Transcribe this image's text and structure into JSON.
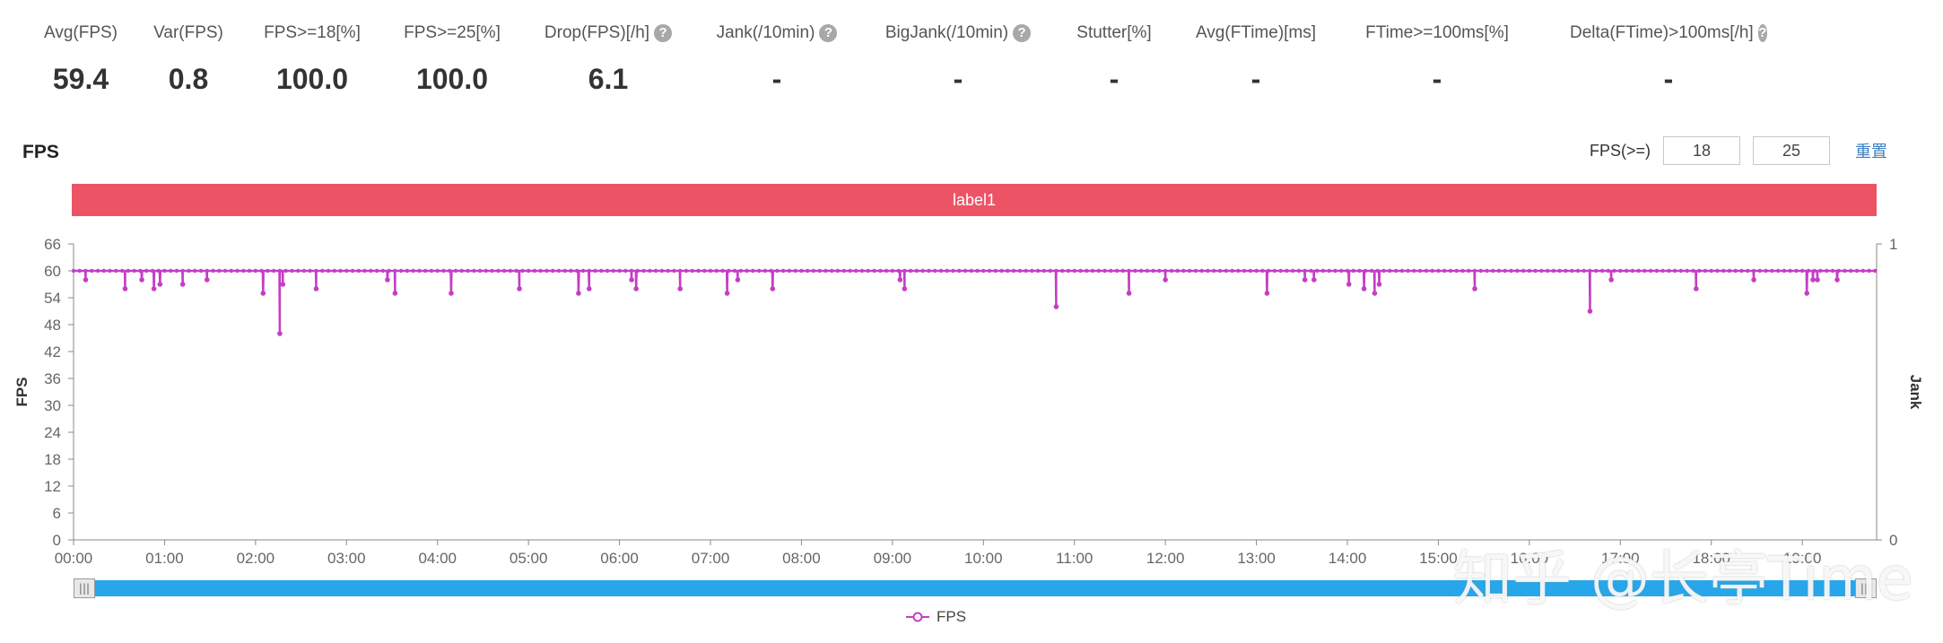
{
  "metrics": [
    {
      "label": "Avg(FPS)",
      "value": "59.4",
      "help": false
    },
    {
      "label": "Var(FPS)",
      "value": "0.8",
      "help": false
    },
    {
      "label": "FPS>=18[%]",
      "value": "100.0",
      "help": false
    },
    {
      "label": "FPS>=25[%]",
      "value": "100.0",
      "help": false
    },
    {
      "label": "Drop(FPS)[/h]",
      "value": "6.1",
      "help": true
    },
    {
      "label": "Jank(/10min)",
      "value": "-",
      "help": true
    },
    {
      "label": "BigJank(/10min)",
      "value": "-",
      "help": true
    },
    {
      "label": "Stutter[%]",
      "value": "-",
      "help": false
    },
    {
      "label": "Avg(FTime)[ms]",
      "value": "-",
      "help": false
    },
    {
      "label": "FTime>=100ms[%]",
      "value": "-",
      "help": false
    },
    {
      "label": "Delta(FTime)>100ms[/h]",
      "value": "-",
      "help": true
    }
  ],
  "help_icon": "question-circle-icon",
  "section_title": "FPS",
  "fps_controls": {
    "label": "FPS(>=)",
    "value1": "18",
    "value2": "25",
    "reset_label": "重置"
  },
  "label_bar": {
    "text": "label1",
    "color": "#ec5466"
  },
  "legend": {
    "label": "FPS",
    "icon": "line-marker-icon"
  },
  "watermark": "知乎 @长亭Time",
  "chart_data": {
    "type": "line",
    "color": "#c43ec4",
    "ylabel": "FPS",
    "y2label": "Jank",
    "ylim": [
      0,
      66
    ],
    "yticks": [
      0,
      6,
      12,
      18,
      24,
      30,
      36,
      42,
      48,
      54,
      60,
      66
    ],
    "y2lim": [
      0,
      1
    ],
    "y2ticks": [
      "0",
      "1"
    ],
    "xlim": [
      "00:00",
      "19:49"
    ],
    "xticks": [
      "00:00",
      "01:00",
      "02:00",
      "03:00",
      "04:00",
      "05:00",
      "06:00",
      "07:00",
      "08:00",
      "09:00",
      "10:00",
      "11:00",
      "12:00",
      "13:00",
      "14:00",
      "15:00",
      "16:00",
      "17:00",
      "18:00",
      "19:00"
    ],
    "grid": false,
    "legend_position": "bottom-center",
    "baseline_fps": 60,
    "dips": [
      {
        "t": "00:08",
        "fps": 58
      },
      {
        "t": "00:34",
        "fps": 56
      },
      {
        "t": "00:45",
        "fps": 58
      },
      {
        "t": "00:53",
        "fps": 56
      },
      {
        "t": "00:57",
        "fps": 57
      },
      {
        "t": "01:12",
        "fps": 57
      },
      {
        "t": "01:28",
        "fps": 58
      },
      {
        "t": "02:05",
        "fps": 55
      },
      {
        "t": "02:16",
        "fps": 46
      },
      {
        "t": "02:18",
        "fps": 57
      },
      {
        "t": "02:40",
        "fps": 56
      },
      {
        "t": "03:27",
        "fps": 58
      },
      {
        "t": "03:32",
        "fps": 55
      },
      {
        "t": "04:09",
        "fps": 55
      },
      {
        "t": "04:54",
        "fps": 56
      },
      {
        "t": "05:33",
        "fps": 55
      },
      {
        "t": "05:40",
        "fps": 56
      },
      {
        "t": "06:08",
        "fps": 58
      },
      {
        "t": "06:11",
        "fps": 56
      },
      {
        "t": "06:40",
        "fps": 56
      },
      {
        "t": "07:11",
        "fps": 55
      },
      {
        "t": "07:18",
        "fps": 58
      },
      {
        "t": "07:41",
        "fps": 56
      },
      {
        "t": "09:05",
        "fps": 58
      },
      {
        "t": "09:08",
        "fps": 56
      },
      {
        "t": "10:48",
        "fps": 52
      },
      {
        "t": "11:36",
        "fps": 55
      },
      {
        "t": "12:00",
        "fps": 58
      },
      {
        "t": "13:07",
        "fps": 55
      },
      {
        "t": "13:32",
        "fps": 58
      },
      {
        "t": "13:38",
        "fps": 58
      },
      {
        "t": "14:01",
        "fps": 57
      },
      {
        "t": "14:11",
        "fps": 56
      },
      {
        "t": "14:18",
        "fps": 55
      },
      {
        "t": "14:21",
        "fps": 57
      },
      {
        "t": "15:24",
        "fps": 56
      },
      {
        "t": "16:40",
        "fps": 51
      },
      {
        "t": "16:54",
        "fps": 58
      },
      {
        "t": "17:50",
        "fps": 56
      },
      {
        "t": "18:28",
        "fps": 58
      },
      {
        "t": "19:03",
        "fps": 55
      },
      {
        "t": "19:07",
        "fps": 58
      },
      {
        "t": "19:10",
        "fps": 58
      },
      {
        "t": "19:23",
        "fps": 58
      }
    ]
  }
}
